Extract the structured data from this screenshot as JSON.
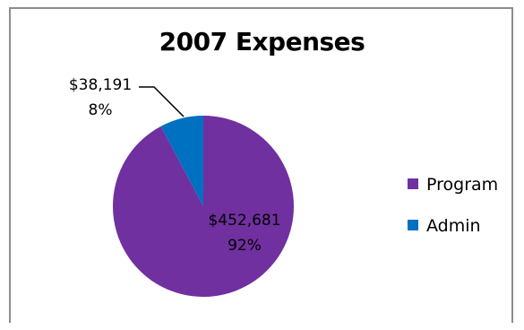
{
  "chart_data": {
    "type": "pie",
    "title": "2007 Expenses",
    "slices": [
      {
        "name": "Program",
        "value": 452681,
        "value_label": "$452,681",
        "percent_label": "92%",
        "color": "#7030a0"
      },
      {
        "name": "Admin",
        "value": 38191,
        "value_label": "$38,191",
        "percent_label": "8%",
        "color": "#0070c0"
      }
    ],
    "legend_position": "right"
  }
}
